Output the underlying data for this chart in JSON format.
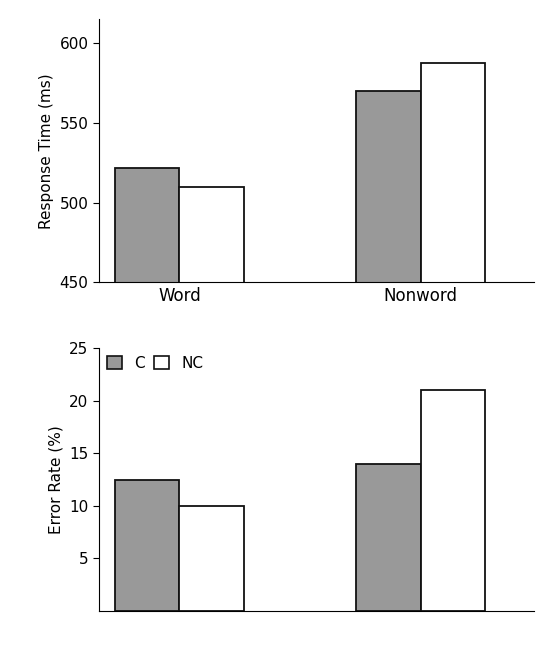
{
  "categories": [
    "Word",
    "Nonword"
  ],
  "rt_C": [
    522,
    570
  ],
  "rt_NC": [
    510,
    588
  ],
  "er_C": [
    12.5,
    14.0
  ],
  "er_NC": [
    10.0,
    21.0
  ],
  "bar_color_C": "#999999",
  "bar_color_NC": "#ffffff",
  "bar_edgecolor": "#111111",
  "rt_ylim": [
    450,
    615
  ],
  "rt_yticks": [
    450,
    500,
    550,
    600
  ],
  "er_ylim": [
    0,
    25
  ],
  "er_yticks": [
    5,
    10,
    15,
    20,
    25
  ],
  "rt_ylabel": "Response Time (ms)",
  "er_ylabel": "Error Rate (%)",
  "legend_labels": [
    "C",
    "NC"
  ],
  "bar_width": 0.4,
  "x_positions": [
    0.5,
    2.0
  ]
}
